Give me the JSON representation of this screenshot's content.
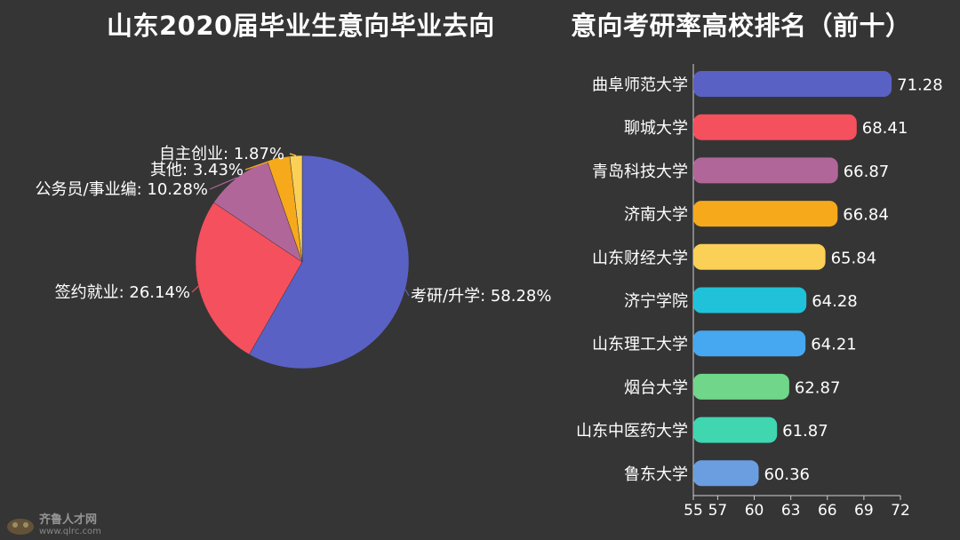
{
  "chart_data": [
    {
      "type": "pie",
      "title": "山东2020届毕业生意向毕业去向",
      "slices": [
        {
          "label": "考研/升学",
          "value": 58.28,
          "display": "58.28%",
          "color": "#5a61c4"
        },
        {
          "label": "签约就业",
          "value": 26.14,
          "display": "26.14%",
          "color": "#f4505e"
        },
        {
          "label": "公务员/事业编",
          "value": 10.28,
          "display": "10.28%",
          "color": "#b1669a"
        },
        {
          "label": "其他",
          "value": 3.43,
          "display": "3.43%",
          "color": "#f6a91b"
        },
        {
          "label": "自主创业",
          "value": 1.87,
          "display": "1.87%",
          "color": "#fbd056"
        }
      ]
    },
    {
      "type": "bar",
      "orientation": "horizontal",
      "title": "意向考研率高校排名（前十）",
      "categories": [
        "曲阜师范大学",
        "聊城大学",
        "青岛科技大学",
        "济南大学",
        "山东财经大学",
        "济宁学院",
        "山东理工大学",
        "烟台大学",
        "山东中医药大学",
        "鲁东大学"
      ],
      "values": [
        71.28,
        68.41,
        66.87,
        66.84,
        65.84,
        64.28,
        64.21,
        62.87,
        61.87,
        60.36
      ],
      "value_labels": [
        "71.28",
        "68.41",
        "66.87",
        "66.84",
        "65.84",
        "64.28",
        "64.21",
        "62.87",
        "61.87",
        "60.36"
      ],
      "colors": [
        "#5a61c4",
        "#f4505e",
        "#b1669a",
        "#f6a91b",
        "#fbd056",
        "#1fc2d8",
        "#45a8f0",
        "#6fd68a",
        "#3fd6b0",
        "#6b9ee0"
      ],
      "xlim": [
        55,
        72
      ],
      "xticks": [
        "55",
        "57",
        "60",
        "63",
        "66",
        "69",
        "72"
      ]
    }
  ],
  "watermark": {
    "brand": "齐鲁人才网",
    "url": "www.qlrc.com"
  }
}
